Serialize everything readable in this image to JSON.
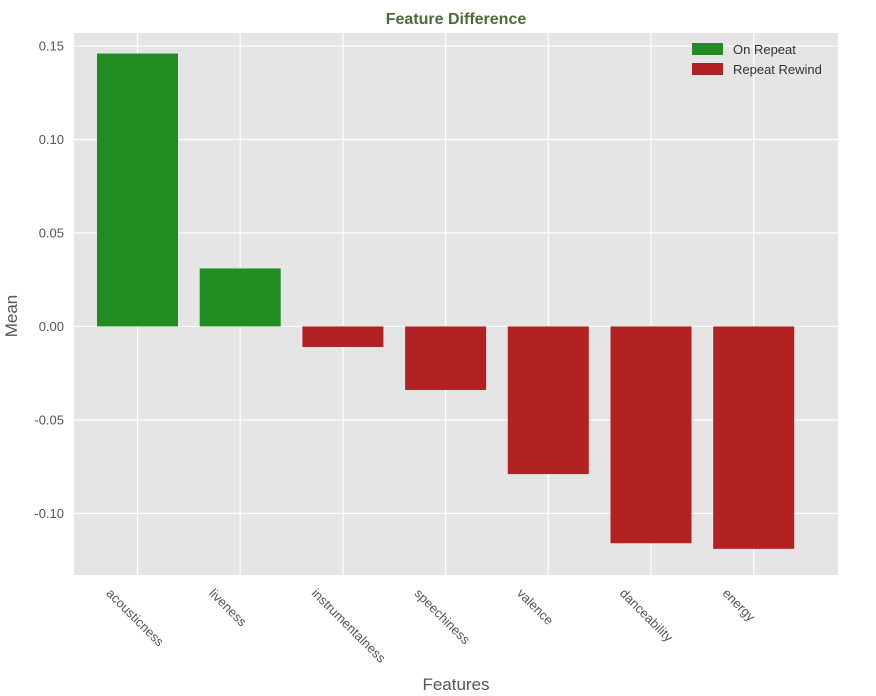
{
  "chart_data": {
    "type": "bar",
    "title": "Feature Difference",
    "xlabel": "Features",
    "ylabel": "Mean",
    "categories": [
      "acousticness",
      "liveness",
      "instrumentalness",
      "speechiness",
      "valence",
      "danceability",
      "energy"
    ],
    "values": [
      0.146,
      0.031,
      -0.011,
      -0.034,
      -0.079,
      -0.116,
      -0.119
    ],
    "ylim": [
      -0.133,
      0.157
    ],
    "yticks": [
      0.15,
      0.1,
      0.05,
      0.0,
      -0.05,
      -0.1
    ],
    "ytick_labels": [
      "0.15",
      "0.10",
      "0.05",
      "0.00",
      "-0.05",
      "-0.10"
    ],
    "grid": true,
    "legend_position": "top-right",
    "legend": [
      {
        "label": "On Repeat",
        "color": "#228b22"
      },
      {
        "label": "Repeat Rewind",
        "color": "#b22222"
      }
    ],
    "colors": {
      "positive": "#228b22",
      "negative": "#b22222",
      "plot_bg": "#e5e5e5",
      "grid": "#ffffff"
    }
  }
}
